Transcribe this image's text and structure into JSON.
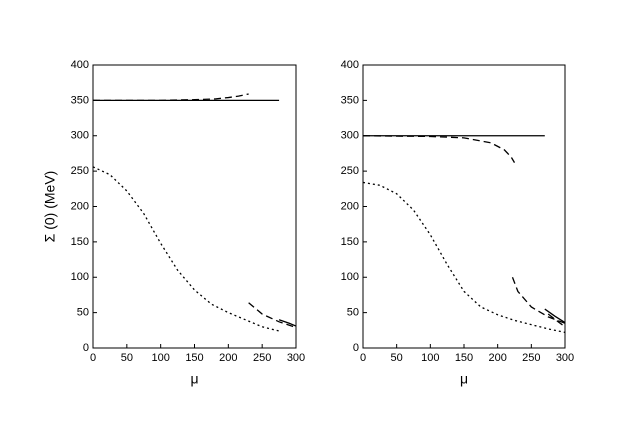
{
  "chart_data": [
    {
      "type": "line",
      "xlabel": "μ",
      "ylabel": "Σ (0)  (MeV)",
      "xlim": [
        0,
        300
      ],
      "ylim": [
        0,
        400
      ],
      "xticks": [
        0,
        50,
        100,
        150,
        200,
        250,
        300
      ],
      "yticks": [
        0,
        50,
        100,
        150,
        200,
        250,
        300,
        350,
        400
      ],
      "series": [
        {
          "style": "solid",
          "color": "#000000",
          "x": [
            0,
            275
          ],
          "values": [
            350,
            350
          ]
        },
        {
          "style": "dashed",
          "color": "#000000",
          "x": [
            0,
            100,
            150,
            180,
            200,
            215,
            230
          ],
          "values": [
            350,
            350,
            351,
            352,
            354,
            356,
            359
          ]
        },
        {
          "style": "dotted",
          "color": "#000000",
          "x": [
            0,
            25,
            50,
            75,
            100,
            125,
            150,
            175,
            200,
            225,
            250,
            275
          ],
          "values": [
            256,
            245,
            222,
            190,
            148,
            110,
            82,
            62,
            50,
            40,
            30,
            24
          ]
        },
        {
          "style": "dashed",
          "color": "#000000",
          "x": [
            230,
            250,
            275,
            300
          ],
          "values": [
            64,
            48,
            37,
            29
          ]
        },
        {
          "style": "solid",
          "color": "#000000",
          "x": [
            275,
            290,
            300
          ],
          "values": [
            40,
            35,
            31
          ]
        }
      ]
    },
    {
      "type": "line",
      "xlabel": "μ",
      "xlim": [
        0,
        300
      ],
      "ylim": [
        0,
        400
      ],
      "xticks": [
        0,
        50,
        100,
        150,
        200,
        250,
        300
      ],
      "yticks": [
        0,
        50,
        100,
        150,
        200,
        250,
        300,
        350,
        400
      ],
      "series": [
        {
          "style": "solid",
          "color": "#000000",
          "x": [
            0,
            270
          ],
          "values": [
            300,
            300
          ]
        },
        {
          "style": "dashed",
          "color": "#000000",
          "x": [
            0,
            100,
            150,
            190,
            210,
            220,
            225
          ],
          "values": [
            300,
            299,
            297,
            290,
            280,
            270,
            262
          ]
        },
        {
          "style": "dotted",
          "color": "#000000",
          "x": [
            0,
            25,
            50,
            75,
            100,
            125,
            150,
            175,
            200,
            225,
            250,
            275,
            300
          ],
          "values": [
            234,
            230,
            218,
            195,
            160,
            118,
            80,
            58,
            47,
            39,
            33,
            27,
            22
          ]
        },
        {
          "style": "dashed",
          "color": "#000000",
          "x": [
            222,
            230,
            250,
            275,
            300
          ],
          "values": [
            100,
            80,
            58,
            44,
            35
          ]
        },
        {
          "style": "dashed",
          "color": "#000000",
          "x": [
            275,
            290,
            300
          ],
          "values": [
            48,
            37,
            30
          ]
        },
        {
          "style": "solid",
          "color": "#000000",
          "x": [
            270,
            285,
            300
          ],
          "values": [
            55,
            45,
            36
          ]
        }
      ]
    }
  ]
}
